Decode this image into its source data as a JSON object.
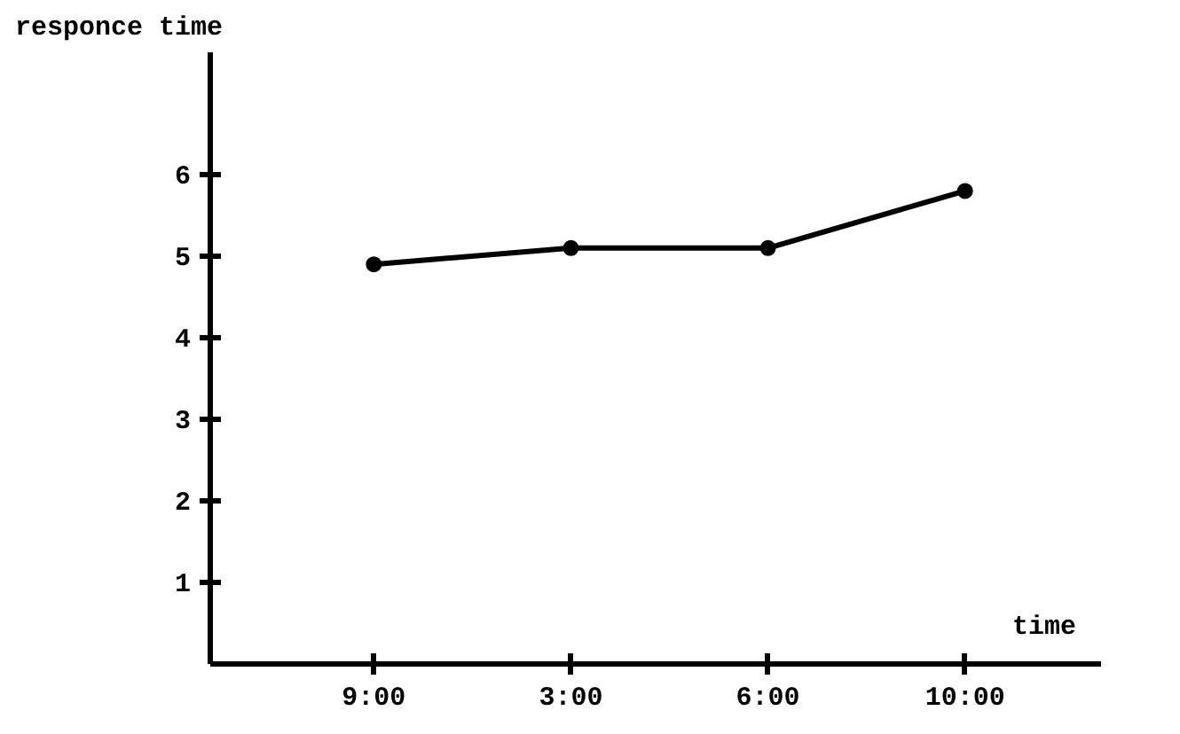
{
  "chart_data": {
    "type": "line",
    "xlabel": "time",
    "ylabel": "responce time",
    "categories": [
      "9:00",
      "3:00",
      "6:00",
      "10:00"
    ],
    "series": [
      {
        "color": "#000000",
        "values": [
          4.9,
          5.1,
          5.1,
          5.8
        ]
      }
    ],
    "ylim": [
      0,
      7.5
    ],
    "yticks": [
      1,
      2,
      3,
      4,
      5,
      6
    ],
    "grid": false,
    "marker": "circle",
    "line_style": "solid"
  }
}
